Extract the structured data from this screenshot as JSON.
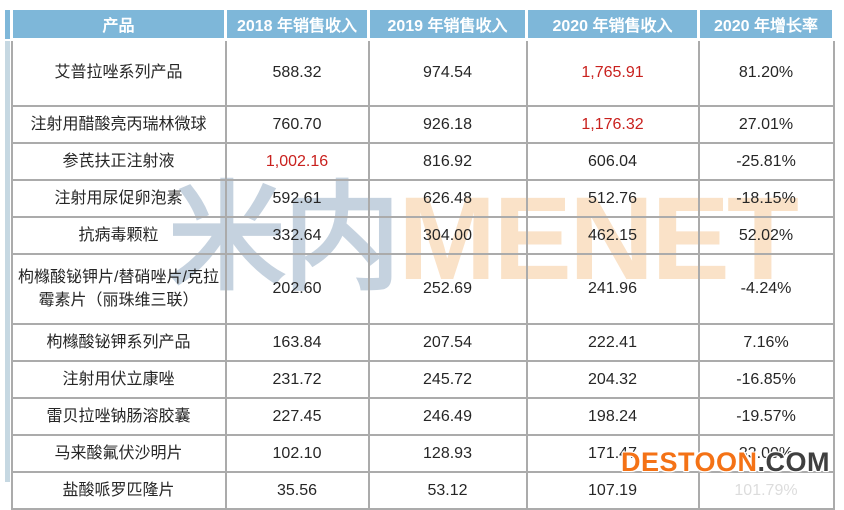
{
  "colors": {
    "header_bg": "#7EB7D9",
    "header_text": "#FFFFFF",
    "grid_line": "#ABABAB",
    "body_text": "#262626",
    "highlight_red": "#C9211E",
    "accent_strip_header": "#7EB7D9",
    "accent_strip_body": "#C6D8E2",
    "watermark_cn_blue": "#8CA5C0",
    "watermark_en_orange": "#EEA555",
    "destoon_orange": "#F47216",
    "destoon_dark": "#3F3F3F"
  },
  "watermarks": {
    "center_cn": "米内",
    "center_en": "MENET",
    "corner_orange": "DESTOON",
    "corner_dark": ".COM"
  },
  "table": {
    "columns": [
      "产品",
      "2018 年销售收入",
      "2019 年销售收入",
      "2020 年销售收入",
      "2020 年增长率"
    ],
    "rows": [
      {
        "cells": [
          "艾普拉唑系列产品",
          "588.32",
          "974.54",
          "1,765.91",
          "81.20%"
        ],
        "red": [
          3
        ],
        "height": "tall"
      },
      {
        "cells": [
          "注射用醋酸亮丙瑞林微球",
          "760.70",
          "926.18",
          "1,176.32",
          "27.01%"
        ],
        "red": [
          3
        ],
        "height": "std"
      },
      {
        "cells": [
          "参芪扶正注射液",
          "1,002.16",
          "816.92",
          "606.04",
          "-25.81%"
        ],
        "red": [
          1
        ],
        "height": "std"
      },
      {
        "cells": [
          "注射用尿促卵泡素",
          "592.61",
          "626.48",
          "512.76",
          "-18.15%"
        ],
        "red": [],
        "height": "std"
      },
      {
        "cells": [
          "抗病毒颗粒",
          "332.64",
          "304.00",
          "462.15",
          "52.02%"
        ],
        "red": [],
        "height": "std"
      },
      {
        "cells": [
          "枸橼酸铋钾片/替硝唑片/克拉霉素片（丽珠维三联）",
          "202.60",
          "252.69",
          "241.96",
          "-4.24%"
        ],
        "red": [],
        "height": "xl"
      },
      {
        "cells": [
          "枸橼酸铋钾系列产品",
          "163.84",
          "207.54",
          "222.41",
          "7.16%"
        ],
        "red": [],
        "height": "std"
      },
      {
        "cells": [
          "注射用伏立康唑",
          "231.72",
          "245.72",
          "204.32",
          "-16.85%"
        ],
        "red": [],
        "height": "std"
      },
      {
        "cells": [
          "雷贝拉唑钠肠溶胶囊",
          "227.45",
          "246.49",
          "198.24",
          "-19.57%"
        ],
        "red": [],
        "height": "std"
      },
      {
        "cells": [
          "马来酸氟伏沙明片",
          "102.10",
          "128.93",
          "171.47",
          "33.00%"
        ],
        "red": [],
        "height": "std"
      },
      {
        "cells": [
          "盐酸哌罗匹隆片",
          "35.56",
          "53.12",
          "107.19",
          "101.79%"
        ],
        "red": [],
        "height": "std",
        "obscured": [
          4
        ]
      }
    ]
  },
  "chart_data": {
    "type": "table",
    "title": "",
    "columns": [
      "产品",
      "2018 年销售收入",
      "2019 年销售收入",
      "2020 年销售收入",
      "2020 年增长率"
    ],
    "rows": [
      [
        "艾普拉唑系列产品",
        588.32,
        974.54,
        1765.91,
        "81.20%"
      ],
      [
        "注射用醋酸亮丙瑞林微球",
        760.7,
        926.18,
        1176.32,
        "27.01%"
      ],
      [
        "参芪扶正注射液",
        1002.16,
        816.92,
        606.04,
        "-25.81%"
      ],
      [
        "注射用尿促卵泡素",
        592.61,
        626.48,
        512.76,
        "-18.15%"
      ],
      [
        "抗病毒颗粒",
        332.64,
        304.0,
        462.15,
        "52.02%"
      ],
      [
        "枸橼酸铋钾片/替硝唑片/克拉霉素片（丽珠维三联）",
        202.6,
        252.69,
        241.96,
        "-4.24%"
      ],
      [
        "枸橼酸铋钾系列产品",
        163.84,
        207.54,
        222.41,
        "7.16%"
      ],
      [
        "注射用伏立康唑",
        231.72,
        245.72,
        204.32,
        "-16.85%"
      ],
      [
        "雷贝拉唑钠肠溶胶囊",
        227.45,
        246.49,
        198.24,
        "-19.57%"
      ],
      [
        "马来酸氟伏沙明片",
        102.1,
        128.93,
        171.47,
        "33.00%"
      ],
      [
        "盐酸哌罗匹隆片",
        35.56,
        53.12,
        107.19,
        "101.79%"
      ]
    ],
    "highlighted_red_cells": [
      {
        "row": 0,
        "column": "2020 年销售收入",
        "value": 1765.91
      },
      {
        "row": 1,
        "column": "2020 年销售收入",
        "value": 1176.32
      },
      {
        "row": 2,
        "column": "2018 年销售收入",
        "value": 1002.16
      }
    ]
  }
}
